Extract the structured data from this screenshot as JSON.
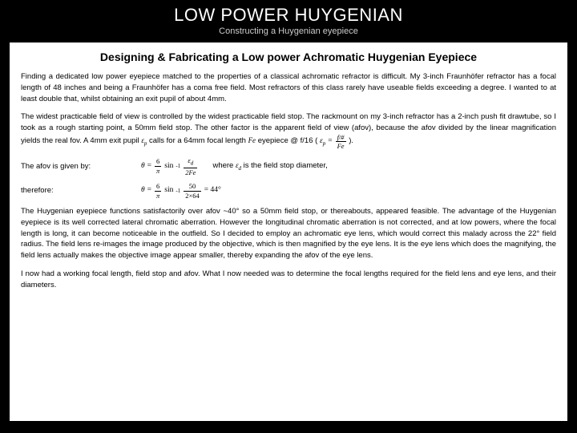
{
  "header": {
    "title": "LOW POWER HUYGENIAN",
    "subtitle": "Constructing a Huygenian eyepiece",
    "title_color": "#ffffff",
    "subtitle_color": "#cccccc",
    "title_fontsize": 22,
    "subtitle_fontsize": 11
  },
  "paper": {
    "background_color": "#ffffff",
    "text_color": "#000000",
    "body_fontsize": 9.5,
    "heading": "Designing & Fabricating a Low power Achromatic Huygenian Eyepiece",
    "p1": "Finding a dedicated low power eyepiece matched to the properties of a classical achromatic refractor is difficult. My 3-inch Fraunhöfer refractor has a focal length of 48 inches and being a Fraunhöfer has a coma free field. Most refractors of this class rarely have useable fields exceeding a degree. I wanted to at least double that, whilst obtaining an exit pupil of about 4mm.",
    "p2_a": "The widest practicable field of view is controlled by the widest practicable field stop. The rackmount on my 3-inch refractor has a 2-inch push fit drawtube, so I took as a rough starting point, a 50mm field stop. The other factor is the apparent field of view (afov), because the afov divided by the linear magnification yields the real fov. A 4mm exit pupil ",
    "p2_ep_var": "ε",
    "p2_ep_sub": "p",
    "p2_b": " calls for a 64mm focal length ",
    "p2_fe_var": "Fe",
    "p2_c": " eyepiece @ f/16 (",
    "p2_lhs_var": "ε",
    "p2_lhs_sub": "p",
    "p2_eq": " = ",
    "p2_frac_num": "f/#",
    "p2_frac_den": "Fe",
    "p2_d": ").",
    "afov_label": "The afov is given by:",
    "afov_theta": "θ",
    "afov_eq": "=",
    "afov_frac1_num": "6",
    "afov_frac1_den": "π",
    "afov_sin": "sin",
    "afov_sup": "-1",
    "afov_frac2_num_var": "ε",
    "afov_frac2_num_sub": "d",
    "afov_frac2_den": "2Fe",
    "afov_where": "where ",
    "afov_var": "ε",
    "afov_var_sub": "d",
    "afov_rest": " is the field stop diameter,",
    "therefore_label": "therefore:",
    "tf_theta": "θ",
    "tf_eq": "=",
    "tf_frac1_num": "6",
    "tf_frac1_den": "π",
    "tf_sin": "sin",
    "tf_sup": "-1",
    "tf_frac2_num": "50",
    "tf_frac2_den": "2×64",
    "tf_result": "= 44°",
    "p3": "The Huygenian eyepiece functions satisfactorily over afov ~40° so a 50mm field stop, or thereabouts, appeared feasible. The advantage of the Huygenian eyepiece is its well corrected lateral chromatic aberration. However the longitudinal chromatic aberration is not corrected, and at low powers, where the focal length is long, it can become noticeable in the outfield. So I decided to employ an achromatic eye lens, which would correct this malady across the 22° field radius. The field lens re-images the image produced by the objective, which is then magnified by the eye lens. It is the eye lens which does the magnifying, the field lens actually makes the objective image appear smaller, thereby expanding the afov of the eye lens.",
    "p4": "I now had a working focal length, field stop and afov. What I now needed was to determine the focal lengths required for the field lens and eye lens, and their diameters."
  },
  "page_bg": "#000000"
}
